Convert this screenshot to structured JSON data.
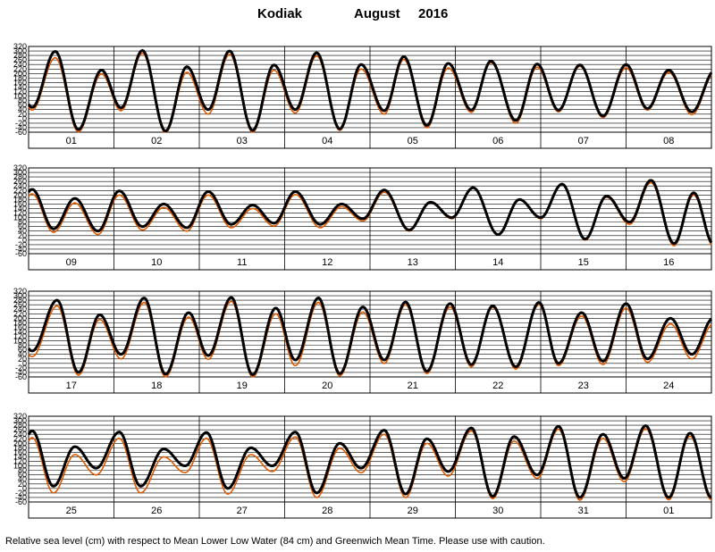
{
  "title": {
    "station": "Kodiak",
    "month": "August",
    "year": "2016"
  },
  "footer": "Relative sea level (cm) with respect to Mean Lower Low Water (84 cm) and Greenwich Mean Time. Please use with caution.",
  "colors": {
    "observed": "#000000",
    "predicted": "#e05a00",
    "grid": "#000000"
  },
  "chart_data": {
    "type": "line",
    "units": "cm",
    "ylim": [
      -60,
      320
    ],
    "y_ticks": [
      -60,
      -40,
      -20,
      0,
      20,
      40,
      60,
      80,
      100,
      120,
      140,
      160,
      180,
      200,
      220,
      240,
      260,
      280,
      300,
      320
    ],
    "y_tick_labels": [
      "-60",
      "-40",
      "-20",
      "0",
      "20",
      "40",
      "60",
      "80",
      "100",
      "120",
      "140",
      "160",
      "180",
      "200",
      "220",
      "240",
      "260",
      "280",
      "300",
      "320"
    ],
    "series": [
      {
        "role": "observed"
      },
      {
        "role": "predicted"
      }
    ],
    "panels": [
      {
        "days": [
          "01",
          "02",
          "03",
          "04",
          "05",
          "06",
          "07",
          "08"
        ],
        "highs": [
          {
            "x": "2016-08-01 07:30",
            "obs": 298,
            "pred": 270
          },
          {
            "x": "2016-08-01 20:30",
            "obs": 215,
            "pred": 198
          },
          {
            "x": "2016-08-02 08:00",
            "obs": 302,
            "pred": 290
          },
          {
            "x": "2016-08-02 20:30",
            "obs": 230,
            "pred": 205
          },
          {
            "x": "2016-08-03 08:30",
            "obs": 300,
            "pred": 285
          },
          {
            "x": "2016-08-03 21:00",
            "obs": 238,
            "pred": 215
          },
          {
            "x": "2016-08-04 09:00",
            "obs": 292,
            "pred": 278
          },
          {
            "x": "2016-08-04 21:30",
            "obs": 240,
            "pred": 220
          },
          {
            "x": "2016-08-05 09:30",
            "obs": 275,
            "pred": 262
          },
          {
            "x": "2016-08-05 22:00",
            "obs": 245,
            "pred": 225
          },
          {
            "x": "2016-08-06 10:00",
            "obs": 255,
            "pred": 248
          },
          {
            "x": "2016-08-06 23:00",
            "obs": 242,
            "pred": 228
          },
          {
            "x": "2016-08-07 11:00",
            "obs": 238,
            "pred": 232
          },
          {
            "x": "2016-08-08 00:00",
            "obs": 240,
            "pred": 225
          },
          {
            "x": "2016-08-08 12:00",
            "obs": 215,
            "pred": 205
          }
        ],
        "lows": [
          {
            "x": "2016-08-01 01:00",
            "obs": 50,
            "pred": 38
          },
          {
            "x": "2016-08-01 14:00",
            "obs": -48,
            "pred": -58
          },
          {
            "x": "2016-08-02 02:00",
            "obs": 48,
            "pred": 35
          },
          {
            "x": "2016-08-02 14:30",
            "obs": -55,
            "pred": -62
          },
          {
            "x": "2016-08-03 02:30",
            "obs": 40,
            "pred": 20
          },
          {
            "x": "2016-08-03 15:00",
            "obs": -52,
            "pred": -60
          },
          {
            "x": "2016-08-04 03:00",
            "obs": 40,
            "pred": 25
          },
          {
            "x": "2016-08-04 15:30",
            "obs": -45,
            "pred": -52
          },
          {
            "x": "2016-08-05 04:00",
            "obs": 35,
            "pred": 20
          },
          {
            "x": "2016-08-05 16:00",
            "obs": -30,
            "pred": -40
          },
          {
            "x": "2016-08-06 04:30",
            "obs": 38,
            "pred": 28
          },
          {
            "x": "2016-08-06 17:00",
            "obs": -8,
            "pred": -20
          },
          {
            "x": "2016-08-07 05:00",
            "obs": 38,
            "pred": 30
          },
          {
            "x": "2016-08-07 17:30",
            "obs": 12,
            "pred": 5
          },
          {
            "x": "2016-08-08 06:00",
            "obs": 45,
            "pred": 38
          },
          {
            "x": "2016-08-08 18:30",
            "obs": 30,
            "pred": 18
          }
        ]
      },
      {
        "days": [
          "09",
          "10",
          "11",
          "12",
          "13",
          "14",
          "15",
          "16"
        ],
        "highs": [
          {
            "x": "2016-08-09 01:00",
            "obs": 225,
            "pred": 205
          },
          {
            "x": "2016-08-09 13:00",
            "obs": 185,
            "pred": 165
          },
          {
            "x": "2016-08-10 01:30",
            "obs": 218,
            "pred": 200
          },
          {
            "x": "2016-08-10 14:00",
            "obs": 160,
            "pred": 145
          },
          {
            "x": "2016-08-11 02:30",
            "obs": 215,
            "pred": 200
          },
          {
            "x": "2016-08-11 15:00",
            "obs": 155,
            "pred": 140
          },
          {
            "x": "2016-08-12 03:00",
            "obs": 215,
            "pred": 202
          },
          {
            "x": "2016-08-12 16:00",
            "obs": 160,
            "pred": 148
          },
          {
            "x": "2016-08-13 04:00",
            "obs": 222,
            "pred": 212
          },
          {
            "x": "2016-08-13 17:00",
            "obs": 168,
            "pred": 165
          },
          {
            "x": "2016-08-14 05:00",
            "obs": 232,
            "pred": 235
          },
          {
            "x": "2016-08-14 18:00",
            "obs": 180,
            "pred": 178
          },
          {
            "x": "2016-08-15 06:00",
            "obs": 248,
            "pred": 250
          },
          {
            "x": "2016-08-15 18:30",
            "obs": 195,
            "pred": 190
          },
          {
            "x": "2016-08-16 07:00",
            "obs": 265,
            "pred": 255
          },
          {
            "x": "2016-08-16 19:00",
            "obs": 210,
            "pred": 200
          }
        ],
        "lows": [
          {
            "x": "2016-08-09 07:00",
            "obs": 50,
            "pred": 35
          },
          {
            "x": "2016-08-09 19:30",
            "obs": 40,
            "pred": 25
          },
          {
            "x": "2016-08-10 08:00",
            "obs": 60,
            "pred": 45
          },
          {
            "x": "2016-08-10 20:30",
            "obs": 55,
            "pred": 40
          },
          {
            "x": "2016-08-11 09:00",
            "obs": 70,
            "pred": 55
          },
          {
            "x": "2016-08-11 21:00",
            "obs": 75,
            "pred": 62
          },
          {
            "x": "2016-08-12 10:00",
            "obs": 70,
            "pred": 55
          },
          {
            "x": "2016-08-12 22:00",
            "obs": 95,
            "pred": 85
          },
          {
            "x": "2016-08-13 11:00",
            "obs": 45,
            "pred": 40
          },
          {
            "x": "2016-08-13 23:00",
            "obs": 100,
            "pred": 95
          },
          {
            "x": "2016-08-14 12:00",
            "obs": 25,
            "pred": 22
          },
          {
            "x": "2016-08-15 00:00",
            "obs": 100,
            "pred": 95
          },
          {
            "x": "2016-08-15 12:30",
            "obs": 5,
            "pred": 0
          },
          {
            "x": "2016-08-16 01:00",
            "obs": 80,
            "pred": 70
          },
          {
            "x": "2016-08-16 13:30",
            "obs": -15,
            "pred": -25
          }
        ]
      },
      {
        "days": [
          "17",
          "18",
          "19",
          "20",
          "21",
          "22",
          "23",
          "24"
        ],
        "highs": [
          {
            "x": "2016-08-17 08:00",
            "obs": 280,
            "pred": 255
          },
          {
            "x": "2016-08-17 20:00",
            "obs": 215,
            "pred": 195
          },
          {
            "x": "2016-08-18 08:30",
            "obs": 290,
            "pred": 270
          },
          {
            "x": "2016-08-18 21:00",
            "obs": 225,
            "pred": 205
          },
          {
            "x": "2016-08-19 09:00",
            "obs": 292,
            "pred": 275
          },
          {
            "x": "2016-08-19 21:30",
            "obs": 245,
            "pred": 220
          },
          {
            "x": "2016-08-20 09:30",
            "obs": 290,
            "pred": 270
          },
          {
            "x": "2016-08-20 22:00",
            "obs": 250,
            "pred": 228
          },
          {
            "x": "2016-08-21 10:00",
            "obs": 272,
            "pred": 260
          },
          {
            "x": "2016-08-21 22:30",
            "obs": 265,
            "pred": 250
          },
          {
            "x": "2016-08-22 10:30",
            "obs": 255,
            "pred": 248
          },
          {
            "x": "2016-08-22 23:30",
            "obs": 270,
            "pred": 260
          },
          {
            "x": "2016-08-23 11:30",
            "obs": 225,
            "pred": 210
          },
          {
            "x": "2016-08-24 00:00",
            "obs": 265,
            "pred": 245
          },
          {
            "x": "2016-08-24 12:30",
            "obs": 200,
            "pred": 175
          }
        ],
        "lows": [
          {
            "x": "2016-08-17 01:00",
            "obs": 55,
            "pred": 30
          },
          {
            "x": "2016-08-17 14:00",
            "obs": -40,
            "pred": -52
          },
          {
            "x": "2016-08-18 02:00",
            "obs": 40,
            "pred": 20
          },
          {
            "x": "2016-08-18 14:30",
            "obs": -48,
            "pred": -60
          },
          {
            "x": "2016-08-19 02:30",
            "obs": 35,
            "pred": 18
          },
          {
            "x": "2016-08-19 15:00",
            "obs": -50,
            "pred": -60
          },
          {
            "x": "2016-08-20 03:00",
            "obs": 15,
            "pred": -10
          },
          {
            "x": "2016-08-20 15:30",
            "obs": -45,
            "pred": -55
          },
          {
            "x": "2016-08-21 04:00",
            "obs": 15,
            "pred": 0
          },
          {
            "x": "2016-08-21 16:00",
            "obs": -35,
            "pred": -45
          },
          {
            "x": "2016-08-22 04:30",
            "obs": -5,
            "pred": -15
          },
          {
            "x": "2016-08-22 17:00",
            "obs": -15,
            "pred": -25
          },
          {
            "x": "2016-08-23 05:00",
            "obs": 0,
            "pred": -10
          },
          {
            "x": "2016-08-23 17:30",
            "obs": 10,
            "pred": -5
          },
          {
            "x": "2016-08-24 06:00",
            "obs": 20,
            "pred": 5
          },
          {
            "x": "2016-08-24 18:30",
            "obs": 40,
            "pred": 20
          }
        ]
      },
      {
        "days": [
          "25",
          "26",
          "27",
          "28",
          "29",
          "30",
          "31",
          "01"
        ],
        "highs": [
          {
            "x": "2016-08-25 01:00",
            "obs": 255,
            "pred": 225
          },
          {
            "x": "2016-08-25 13:00",
            "obs": 185,
            "pred": 150
          },
          {
            "x": "2016-08-26 01:30",
            "obs": 250,
            "pred": 222
          },
          {
            "x": "2016-08-26 14:00",
            "obs": 175,
            "pred": 140
          },
          {
            "x": "2016-08-27 02:00",
            "obs": 248,
            "pred": 222
          },
          {
            "x": "2016-08-27 14:30",
            "obs": 180,
            "pred": 150
          },
          {
            "x": "2016-08-28 03:00",
            "obs": 250,
            "pred": 228
          },
          {
            "x": "2016-08-28 15:30",
            "obs": 200,
            "pred": 178
          },
          {
            "x": "2016-08-29 04:00",
            "obs": 258,
            "pred": 240
          },
          {
            "x": "2016-08-29 16:00",
            "obs": 220,
            "pred": 200
          },
          {
            "x": "2016-08-30 04:30",
            "obs": 268,
            "pred": 255
          },
          {
            "x": "2016-08-30 16:30",
            "obs": 230,
            "pred": 210
          },
          {
            "x": "2016-08-31 05:00",
            "obs": 275,
            "pred": 262
          },
          {
            "x": "2016-08-31 17:30",
            "obs": 240,
            "pred": 222
          },
          {
            "x": "2016-09-01 05:30",
            "obs": 278,
            "pred": 265
          },
          {
            "x": "2016-09-01 18:00",
            "obs": 245,
            "pred": 232
          }
        ],
        "lows": [
          {
            "x": "2016-08-25 07:00",
            "obs": 10,
            "pred": -20
          },
          {
            "x": "2016-08-25 19:00",
            "obs": 90,
            "pred": 60
          },
          {
            "x": "2016-08-26 07:30",
            "obs": 10,
            "pred": -20
          },
          {
            "x": "2016-08-26 20:00",
            "obs": 100,
            "pred": 70
          },
          {
            "x": "2016-08-27 08:00",
            "obs": 0,
            "pred": -25
          },
          {
            "x": "2016-08-27 20:30",
            "obs": 100,
            "pred": 75
          },
          {
            "x": "2016-08-28 09:00",
            "obs": -20,
            "pred": -40
          },
          {
            "x": "2016-08-28 21:30",
            "obs": 90,
            "pred": 70
          },
          {
            "x": "2016-08-29 10:00",
            "obs": -25,
            "pred": -40
          },
          {
            "x": "2016-08-29 22:00",
            "obs": 75,
            "pred": 55
          },
          {
            "x": "2016-08-30 10:30",
            "obs": -35,
            "pred": -45
          },
          {
            "x": "2016-08-30 23:00",
            "obs": 60,
            "pred": 45
          },
          {
            "x": "2016-08-31 11:00",
            "obs": -40,
            "pred": -52
          },
          {
            "x": "2016-08-31 23:30",
            "obs": 45,
            "pred": 30
          },
          {
            "x": "2016-09-01 12:00",
            "obs": -40,
            "pred": -50
          }
        ]
      }
    ]
  }
}
